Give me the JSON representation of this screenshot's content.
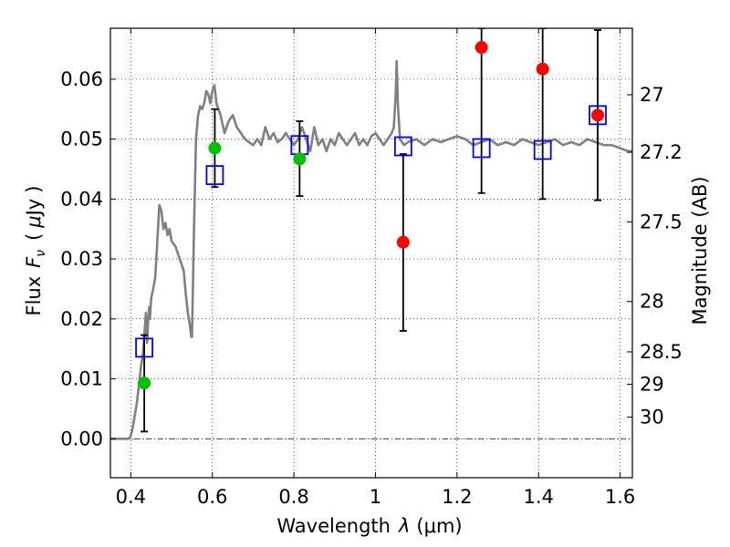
{
  "chart_data": {
    "type": "scatter",
    "title": "",
    "xlabel": "Wavelength",
    "xlabel_symbol": "λ",
    "xlabel_unit": "(μm)",
    "ylabel": "Flux",
    "ylabel_symbol": "F",
    "ylabel_subscript": "ν",
    "ylabel_unit_open": "(",
    "ylabel_unit_mu": "μ",
    "ylabel_unit": "Jy",
    "ylabel_unit_close": ")",
    "y2label": "Magnitude (AB)",
    "xlim": [
      0.35,
      1.63
    ],
    "ylim": [
      -0.0065,
      0.0685
    ],
    "x_ticks": [
      0.4,
      0.6,
      0.8,
      1.0,
      1.2,
      1.4,
      1.6
    ],
    "x_tick_labels": [
      "0.4",
      "0.6",
      "0.8",
      "1",
      "1.2",
      "1.4",
      "1.6"
    ],
    "y_ticks": [
      0.0,
      0.01,
      0.02,
      0.03,
      0.04,
      0.05,
      0.06
    ],
    "y_tick_labels": [
      "0.00",
      "0.01",
      "0.02",
      "0.03",
      "0.04",
      "0.05",
      "0.06"
    ],
    "y2_ticks": [
      {
        "label": "27",
        "flux": 0.0574
      },
      {
        "label": "27.2",
        "flux": 0.0478
      },
      {
        "label": "27.5",
        "flux": 0.0362
      },
      {
        "label": "28",
        "flux": 0.0229
      },
      {
        "label": "28.5",
        "flux": 0.0145
      },
      {
        "label": "29",
        "flux": 0.0091
      },
      {
        "label": "30",
        "flux": 0.0036
      }
    ],
    "grid": true,
    "colors": {
      "model": "#808080",
      "model_points": "#0000ff",
      "detections": "#00c000",
      "nondetections": "#ff0000",
      "errorbars": "#000000",
      "zero_line": "#000000"
    },
    "series": [
      {
        "name": "model_spectrum",
        "type": "line",
        "points": [
          [
            0.35,
            0.0
          ],
          [
            0.37,
            0.0
          ],
          [
            0.385,
            0.0
          ],
          [
            0.395,
            0.0
          ],
          [
            0.4,
            0.0005
          ],
          [
            0.405,
            0.002
          ],
          [
            0.41,
            0.004
          ],
          [
            0.415,
            0.006
          ],
          [
            0.42,
            0.009
          ],
          [
            0.425,
            0.012
          ],
          [
            0.43,
            0.0145
          ],
          [
            0.435,
            0.019
          ],
          [
            0.437,
            0.021
          ],
          [
            0.44,
            0.016
          ],
          [
            0.442,
            0.019
          ],
          [
            0.445,
            0.022
          ],
          [
            0.447,
            0.02
          ],
          [
            0.45,
            0.0235
          ],
          [
            0.455,
            0.025
          ],
          [
            0.46,
            0.027
          ],
          [
            0.465,
            0.033
          ],
          [
            0.47,
            0.039
          ],
          [
            0.475,
            0.038
          ],
          [
            0.48,
            0.035
          ],
          [
            0.485,
            0.036
          ],
          [
            0.49,
            0.034
          ],
          [
            0.495,
            0.035
          ],
          [
            0.5,
            0.033
          ],
          [
            0.51,
            0.032
          ],
          [
            0.52,
            0.03
          ],
          [
            0.53,
            0.028
          ],
          [
            0.535,
            0.024
          ],
          [
            0.54,
            0.021
          ],
          [
            0.545,
            0.019
          ],
          [
            0.548,
            0.017
          ],
          [
            0.55,
            0.017
          ],
          [
            0.555,
            0.035
          ],
          [
            0.56,
            0.05
          ],
          [
            0.565,
            0.054
          ],
          [
            0.57,
            0.0555
          ],
          [
            0.575,
            0.055
          ],
          [
            0.58,
            0.056
          ],
          [
            0.585,
            0.058
          ],
          [
            0.59,
            0.0575
          ],
          [
            0.595,
            0.056
          ],
          [
            0.6,
            0.058
          ],
          [
            0.605,
            0.059
          ],
          [
            0.61,
            0.056
          ],
          [
            0.615,
            0.055
          ],
          [
            0.62,
            0.054
          ],
          [
            0.625,
            0.0525
          ],
          [
            0.63,
            0.051
          ],
          [
            0.64,
            0.053
          ],
          [
            0.65,
            0.054
          ],
          [
            0.66,
            0.052
          ],
          [
            0.67,
            0.051
          ],
          [
            0.68,
            0.05
          ],
          [
            0.69,
            0.0495
          ],
          [
            0.7,
            0.049
          ],
          [
            0.71,
            0.05
          ],
          [
            0.72,
            0.049
          ],
          [
            0.73,
            0.052
          ],
          [
            0.74,
            0.05
          ],
          [
            0.75,
            0.051
          ],
          [
            0.76,
            0.0495
          ],
          [
            0.77,
            0.05
          ],
          [
            0.78,
            0.051
          ],
          [
            0.79,
            0.05
          ],
          [
            0.8,
            0.049
          ],
          [
            0.81,
            0.05
          ],
          [
            0.82,
            0.052
          ],
          [
            0.83,
            0.05
          ],
          [
            0.84,
            0.048
          ],
          [
            0.85,
            0.052
          ],
          [
            0.86,
            0.049
          ],
          [
            0.87,
            0.05
          ],
          [
            0.88,
            0.048
          ],
          [
            0.89,
            0.05
          ],
          [
            0.9,
            0.049
          ],
          [
            0.91,
            0.051
          ],
          [
            0.92,
            0.05
          ],
          [
            0.93,
            0.049
          ],
          [
            0.94,
            0.05
          ],
          [
            0.95,
            0.051
          ],
          [
            0.96,
            0.049
          ],
          [
            0.97,
            0.05
          ],
          [
            0.98,
            0.049
          ],
          [
            0.99,
            0.0505
          ],
          [
            1.0,
            0.051
          ],
          [
            1.01,
            0.05
          ],
          [
            1.02,
            0.049
          ],
          [
            1.03,
            0.05
          ],
          [
            1.04,
            0.051
          ],
          [
            1.045,
            0.052
          ],
          [
            1.05,
            0.058
          ],
          [
            1.052,
            0.063
          ],
          [
            1.055,
            0.056
          ],
          [
            1.06,
            0.05
          ],
          [
            1.07,
            0.049
          ],
          [
            1.08,
            0.0495
          ],
          [
            1.1,
            0.05
          ],
          [
            1.12,
            0.049
          ],
          [
            1.14,
            0.05
          ],
          [
            1.16,
            0.0495
          ],
          [
            1.18,
            0.05
          ],
          [
            1.2,
            0.0505
          ],
          [
            1.22,
            0.05
          ],
          [
            1.24,
            0.049
          ],
          [
            1.26,
            0.0495
          ],
          [
            1.28,
            0.05
          ],
          [
            1.3,
            0.049
          ],
          [
            1.32,
            0.0495
          ],
          [
            1.34,
            0.049
          ],
          [
            1.36,
            0.05
          ],
          [
            1.38,
            0.0495
          ],
          [
            1.4,
            0.049
          ],
          [
            1.42,
            0.0495
          ],
          [
            1.44,
            0.05
          ],
          [
            1.46,
            0.049
          ],
          [
            1.48,
            0.0495
          ],
          [
            1.5,
            0.049
          ],
          [
            1.52,
            0.05
          ],
          [
            1.54,
            0.0495
          ],
          [
            1.56,
            0.049
          ],
          [
            1.58,
            0.049
          ],
          [
            1.6,
            0.0485
          ],
          [
            1.62,
            0.048
          ],
          [
            1.63,
            0.048
          ]
        ]
      },
      {
        "name": "model_photometry",
        "marker": "open-square",
        "points": [
          [
            0.433,
            0.0152
          ],
          [
            0.606,
            0.044
          ],
          [
            0.814,
            0.049
          ],
          [
            1.068,
            0.0488
          ],
          [
            1.26,
            0.0485
          ],
          [
            1.41,
            0.0482
          ],
          [
            1.545,
            0.054
          ]
        ]
      },
      {
        "name": "detections",
        "marker": "filled-circle",
        "points": [
          {
            "x": 0.433,
            "y": 0.0093,
            "ylow": 0.0012,
            "yhigh": 0.0173
          },
          {
            "x": 0.606,
            "y": 0.0485,
            "ylow": 0.042,
            "yhigh": 0.055
          },
          {
            "x": 0.814,
            "y": 0.0467,
            "ylow": 0.0405,
            "yhigh": 0.053
          }
        ]
      },
      {
        "name": "nondetections",
        "marker": "filled-circle",
        "points": [
          {
            "x": 1.068,
            "y": 0.0328,
            "ylow": 0.018,
            "yhigh": 0.0475
          },
          {
            "x": 1.26,
            "y": 0.0653,
            "ylow": 0.041,
            "yhigh": 0.0685
          },
          {
            "x": 1.41,
            "y": 0.0617,
            "ylow": 0.04,
            "yhigh": 0.0685
          },
          {
            "x": 1.545,
            "y": 0.054,
            "ylow": 0.0398,
            "yhigh": 0.0682
          }
        ]
      }
    ]
  }
}
